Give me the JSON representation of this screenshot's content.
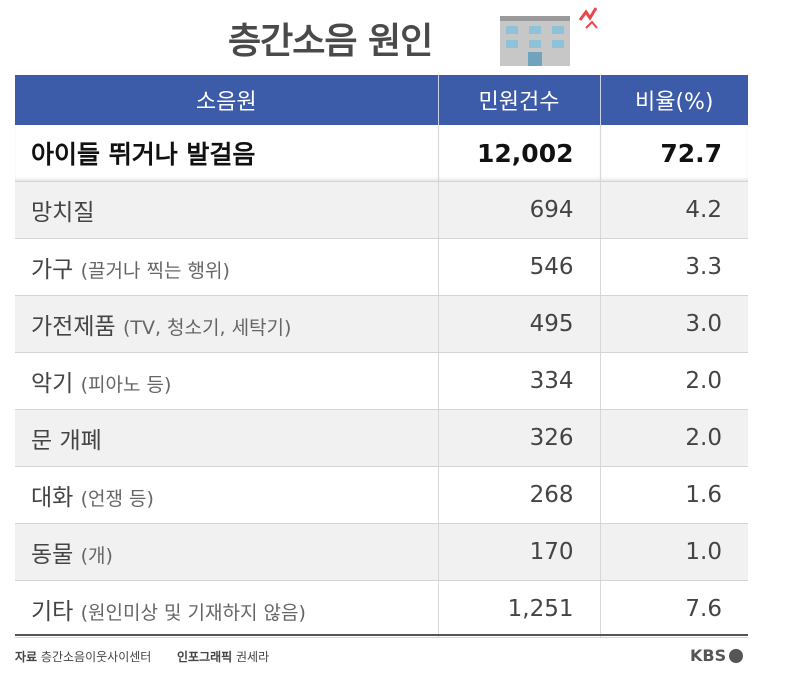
{
  "title": "층간소음 원인",
  "chart_data": {
    "type": "table",
    "columns": [
      "소음원",
      "민원건수",
      "비율(%)"
    ],
    "rows": [
      {
        "source": "아이들 뛰거나 발걸음",
        "note": "",
        "count": "12,002",
        "ratio": "72.7",
        "highlight": true
      },
      {
        "source": "망치질",
        "note": "",
        "count": "694",
        "ratio": "4.2"
      },
      {
        "source": "가구",
        "note": "(끌거나 찍는 행위)",
        "count": "546",
        "ratio": "3.3"
      },
      {
        "source": "가전제품",
        "note": "(TV, 청소기, 세탁기)",
        "count": "495",
        "ratio": "3.0"
      },
      {
        "source": "악기",
        "note": "(피아노 등)",
        "count": "334",
        "ratio": "2.0"
      },
      {
        "source": "문 개폐",
        "note": "",
        "count": "326",
        "ratio": "2.0"
      },
      {
        "source": "대화",
        "note": "(언쟁 등)",
        "count": "268",
        "ratio": "1.6"
      },
      {
        "source": "동물",
        "note": "(개)",
        "count": "170",
        "ratio": "1.0"
      },
      {
        "source": "기타",
        "note": "(원인미상 및 기재하지 않음)",
        "count": "1,251",
        "ratio": "7.6"
      }
    ]
  },
  "footer": {
    "source_label": "자료",
    "source_text": "층간소음이웃사이센터",
    "graphic_label": "인포그래픽",
    "graphic_author": "권세라",
    "logo": "KBS"
  },
  "colors": {
    "header": "#3c5ba8",
    "stripe": "#f1f1f1",
    "accent": "#e8474b"
  }
}
